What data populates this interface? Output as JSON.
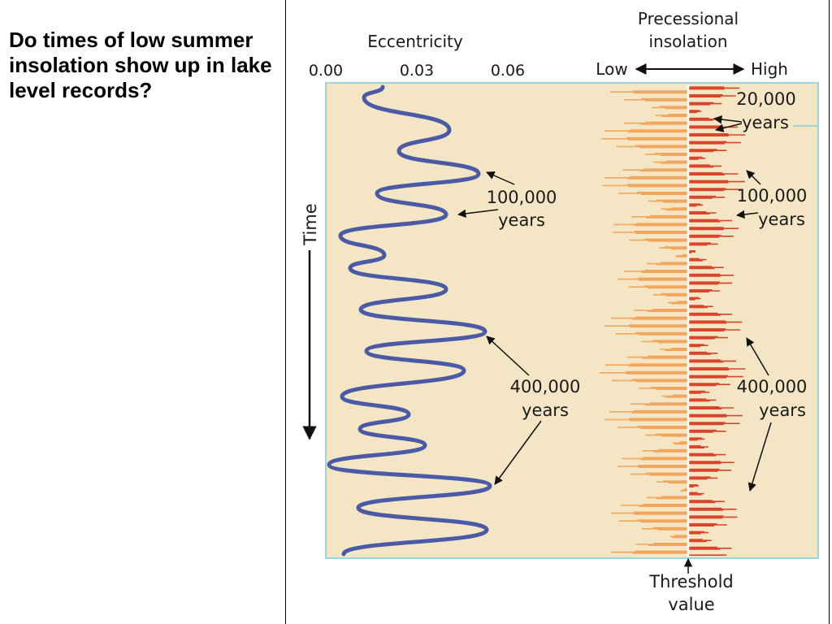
{
  "question": "Do times of low summer insolation show up in lake level records?",
  "figure": {
    "eccentricity_title": "Eccentricity",
    "ecc_ticks": [
      "0.00",
      "0.03",
      "0.06"
    ],
    "precession_title_1": "Precessional",
    "precession_title_2": "insolation",
    "low_label": "Low",
    "high_label": "High",
    "time_label": "Time",
    "label_20k_1": "20,000",
    "label_20k_2": "years",
    "label_100k_1": "100,000",
    "label_100k_2": "years",
    "label_400k_1": "400,000",
    "label_400k_2": "years",
    "threshold_1": "Threshold",
    "threshold_2": "value",
    "colors": {
      "panel_bg": "#f4e6c4",
      "panel_border": "#9ed6d6",
      "eccentricity_line": "#4a5aa6",
      "precession_low": "#f0a65c",
      "precession_high": "#d9452a",
      "threshold_line": "#ffffff"
    }
  }
}
